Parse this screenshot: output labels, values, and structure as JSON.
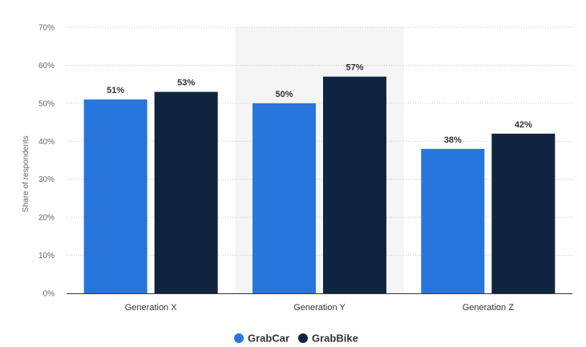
{
  "chart_data": {
    "type": "bar",
    "title": "",
    "xlabel": "",
    "ylabel": "Share of respondents",
    "categories": [
      "Generation X",
      "Generation Y",
      "Generation Z"
    ],
    "series": [
      {
        "name": "GrabCar",
        "values": [
          51,
          50,
          38
        ],
        "color": "#2876dd"
      },
      {
        "name": "GrabBike",
        "values": [
          53,
          57,
          42
        ],
        "color": "#0f253f"
      }
    ],
    "ylim": [
      0,
      70
    ],
    "yticks": [
      0,
      10,
      20,
      30,
      40,
      50,
      60,
      70
    ],
    "ytick_labels": [
      "0%",
      "10%",
      "20%",
      "30%",
      "40%",
      "50%",
      "60%",
      "70%"
    ],
    "data_labels": [
      [
        "51%",
        "50%",
        "38%"
      ],
      [
        "53%",
        "57%",
        "42%"
      ]
    ],
    "grid": true,
    "highlighted_category": "Generation Y",
    "legend_position": "bottom-center"
  }
}
